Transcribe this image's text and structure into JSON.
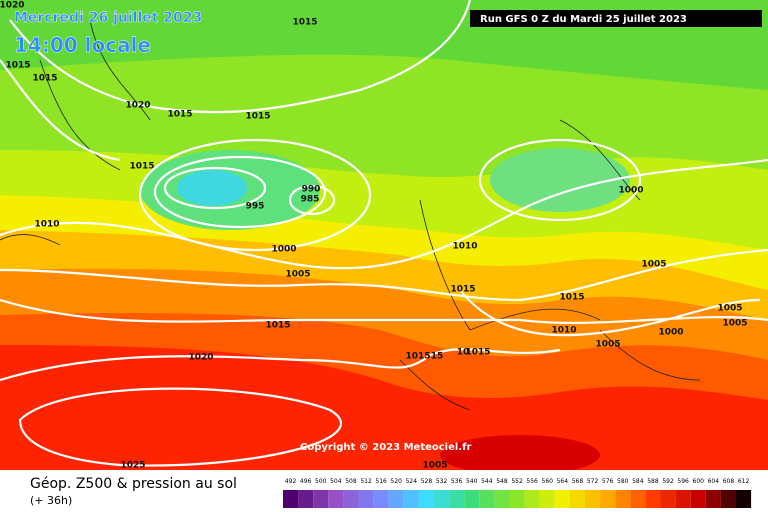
{
  "header": {
    "date": "Mercredi 26 juillet 2023",
    "time": "14:00 locale",
    "run": "Run GFS 0 Z du Mardi 25 juillet 2023"
  },
  "map": {
    "isobar_labels": [
      1020,
      1015,
      1015,
      1015,
      1020,
      1015,
      1015,
      1015,
      990,
      985,
      995,
      1010,
      1000,
      1010,
      1005,
      1000,
      1005,
      1015,
      1015,
      1015,
      1010,
      1005,
      1005,
      1000,
      1005,
      1020,
      1015,
      15,
      10,
      1015,
      1025,
      1005
    ],
    "copyright": "Copyright © 2023 Meteociel.fr"
  },
  "legend": {
    "title": "Géop. Z500 & pression au sol",
    "lead": "(+ 36h)",
    "scale": [
      492,
      496,
      500,
      504,
      508,
      512,
      516,
      520,
      524,
      528,
      532,
      536,
      540,
      544,
      548,
      552,
      556,
      560,
      564,
      568,
      572,
      576,
      580,
      584,
      588,
      592,
      596,
      600,
      604,
      608,
      612
    ]
  }
}
